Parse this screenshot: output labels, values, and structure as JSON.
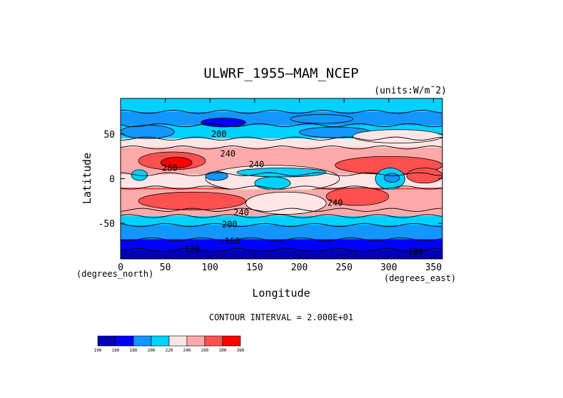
{
  "chart_data": {
    "type": "heatmap",
    "title": "ULWRF_1955—MAM_NCEP",
    "units_label": "(units:W/m¯2)",
    "xlabel": "Longitude",
    "ylabel": "Latitude",
    "x_unit_label": "(degrees_east)",
    "y_unit_label": "(degrees_north)",
    "contour_interval_text": "CONTOUR INTERVAL = 2.000E+01",
    "xlim": [
      0,
      360
    ],
    "ylim": [
      -90,
      90
    ],
    "x_ticks": [
      0,
      50,
      100,
      150,
      200,
      250,
      300,
      350
    ],
    "y_ticks": [
      50,
      0,
      -50
    ],
    "contour_labels": [
      {
        "text": "200",
        "lon": 110,
        "lat": 50
      },
      {
        "text": "240",
        "lon": 120,
        "lat": 28
      },
      {
        "text": "240",
        "lon": 152,
        "lat": 16
      },
      {
        "text": "280",
        "lon": 55,
        "lat": 12
      },
      {
        "text": "240",
        "lon": 135,
        "lat": -38
      },
      {
        "text": "240",
        "lon": 240,
        "lat": -27
      },
      {
        "text": "200",
        "lon": 122,
        "lat": -51
      },
      {
        "text": "160",
        "lon": 125,
        "lat": -70
      },
      {
        "text": "120",
        "lon": 80,
        "lat": -79
      },
      {
        "text": "180",
        "lon": 330,
        "lat": -82
      }
    ],
    "colorbar": {
      "levels": [
        "100",
        "160",
        "180",
        "200",
        "220",
        "240",
        "260",
        "300",
        "360"
      ],
      "colors": [
        "#0000b4",
        "#0000ff",
        "#1496ff",
        "#00d2ff",
        "#ffe6e6",
        "#ffaaaa",
        "#ff5050",
        "#ff0000"
      ]
    },
    "bands": [
      {
        "lat_top": 90,
        "lat_bottom": 75,
        "color": "#00d2ff"
      },
      {
        "lat_top": 75,
        "lat_bottom": 60,
        "color": "#1496ff"
      },
      {
        "lat_top": 60,
        "lat_bottom": 45,
        "color": "#00d2ff"
      },
      {
        "lat_top": 45,
        "lat_bottom": 35,
        "color": "#ffe6e6"
      },
      {
        "lat_top": 35,
        "lat_bottom": 5,
        "color": "#ff5050"
      },
      {
        "lat_top": 5,
        "lat_bottom": -10,
        "color": "#ffe6e6"
      },
      {
        "lat_top": -10,
        "lat_bottom": -35,
        "color": "#ff5050"
      },
      {
        "lat_top": -35,
        "lat_bottom": -42,
        "color": "#ffaaaa"
      },
      {
        "lat_top": -42,
        "lat_bottom": -52,
        "color": "#00d2ff"
      },
      {
        "lat_top": -52,
        "lat_bottom": -68,
        "color": "#1496ff"
      },
      {
        "lat_top": -68,
        "lat_bottom": -80,
        "color": "#0000ff"
      },
      {
        "lat_top": -80,
        "lat_bottom": -90,
        "color": "#0000b4"
      }
    ],
    "patches": [
      {
        "lon": [
          0,
          360
        ],
        "lat": [
          35,
          5
        ],
        "color": "#ffaaaa",
        "shape": "rect"
      },
      {
        "lon": [
          20,
          95
        ],
        "lat": [
          30,
          10
        ],
        "color": "#ff5050",
        "shape": "ellipse"
      },
      {
        "lon": [
          45,
          80
        ],
        "lat": [
          24,
          12
        ],
        "color": "#ff0000",
        "shape": "ellipse"
      },
      {
        "lon": [
          240,
          360
        ],
        "lat": [
          25,
          5
        ],
        "color": "#ff5050",
        "shape": "ellipse"
      },
      {
        "lon": [
          320,
          360
        ],
        "lat": [
          12,
          -5
        ],
        "color": "#ff5050",
        "shape": "ellipse"
      },
      {
        "lon": [
          95,
          245
        ],
        "lat": [
          15,
          -15
        ],
        "color": "#ffe6e6",
        "shape": "ellipse"
      },
      {
        "lon": [
          130,
          230
        ],
        "lat": [
          12,
          2
        ],
        "color": "#00d2ff",
        "shape": "ellipse"
      },
      {
        "lon": [
          150,
          190
        ],
        "lat": [
          2,
          -12
        ],
        "color": "#00d2ff",
        "shape": "ellipse"
      },
      {
        "lon": [
          95,
          120
        ],
        "lat": [
          8,
          -2
        ],
        "color": "#1496ff",
        "shape": "ellipse"
      },
      {
        "lon": [
          12,
          30
        ],
        "lat": [
          10,
          -2
        ],
        "color": "#00d2ff",
        "shape": "ellipse"
      },
      {
        "lon": [
          285,
          318
        ],
        "lat": [
          12,
          -12
        ],
        "color": "#00d2ff",
        "shape": "ellipse"
      },
      {
        "lon": [
          295,
          312
        ],
        "lat": [
          6,
          -4
        ],
        "color": "#1496ff",
        "shape": "ellipse"
      },
      {
        "lon": [
          0,
          360
        ],
        "lat": [
          -12,
          -35
        ],
        "color": "#ffaaaa",
        "shape": "rect"
      },
      {
        "lon": [
          20,
          140
        ],
        "lat": [
          -15,
          -35
        ],
        "color": "#ff5050",
        "shape": "ellipse"
      },
      {
        "lon": [
          230,
          300
        ],
        "lat": [
          -10,
          -30
        ],
        "color": "#ff5050",
        "shape": "ellipse"
      },
      {
        "lon": [
          140,
          230
        ],
        "lat": [
          -15,
          -40
        ],
        "color": "#ffe6e6",
        "shape": "ellipse"
      },
      {
        "lon": [
          90,
          140
        ],
        "lat": [
          68,
          58
        ],
        "color": "#0000ff",
        "shape": "ellipse"
      },
      {
        "lon": [
          190,
          260
        ],
        "lat": [
          72,
          62
        ],
        "color": "#1496ff",
        "shape": "ellipse"
      },
      {
        "lon": [
          200,
          280
        ],
        "lat": [
          58,
          46
        ],
        "color": "#1496ff",
        "shape": "ellipse"
      },
      {
        "lon": [
          0,
          60
        ],
        "lat": [
          60,
          45
        ],
        "color": "#1496ff",
        "shape": "ellipse"
      },
      {
        "lon": [
          260,
          360
        ],
        "lat": [
          55,
          40
        ],
        "color": "#ffe6e6",
        "shape": "ellipse"
      }
    ]
  }
}
